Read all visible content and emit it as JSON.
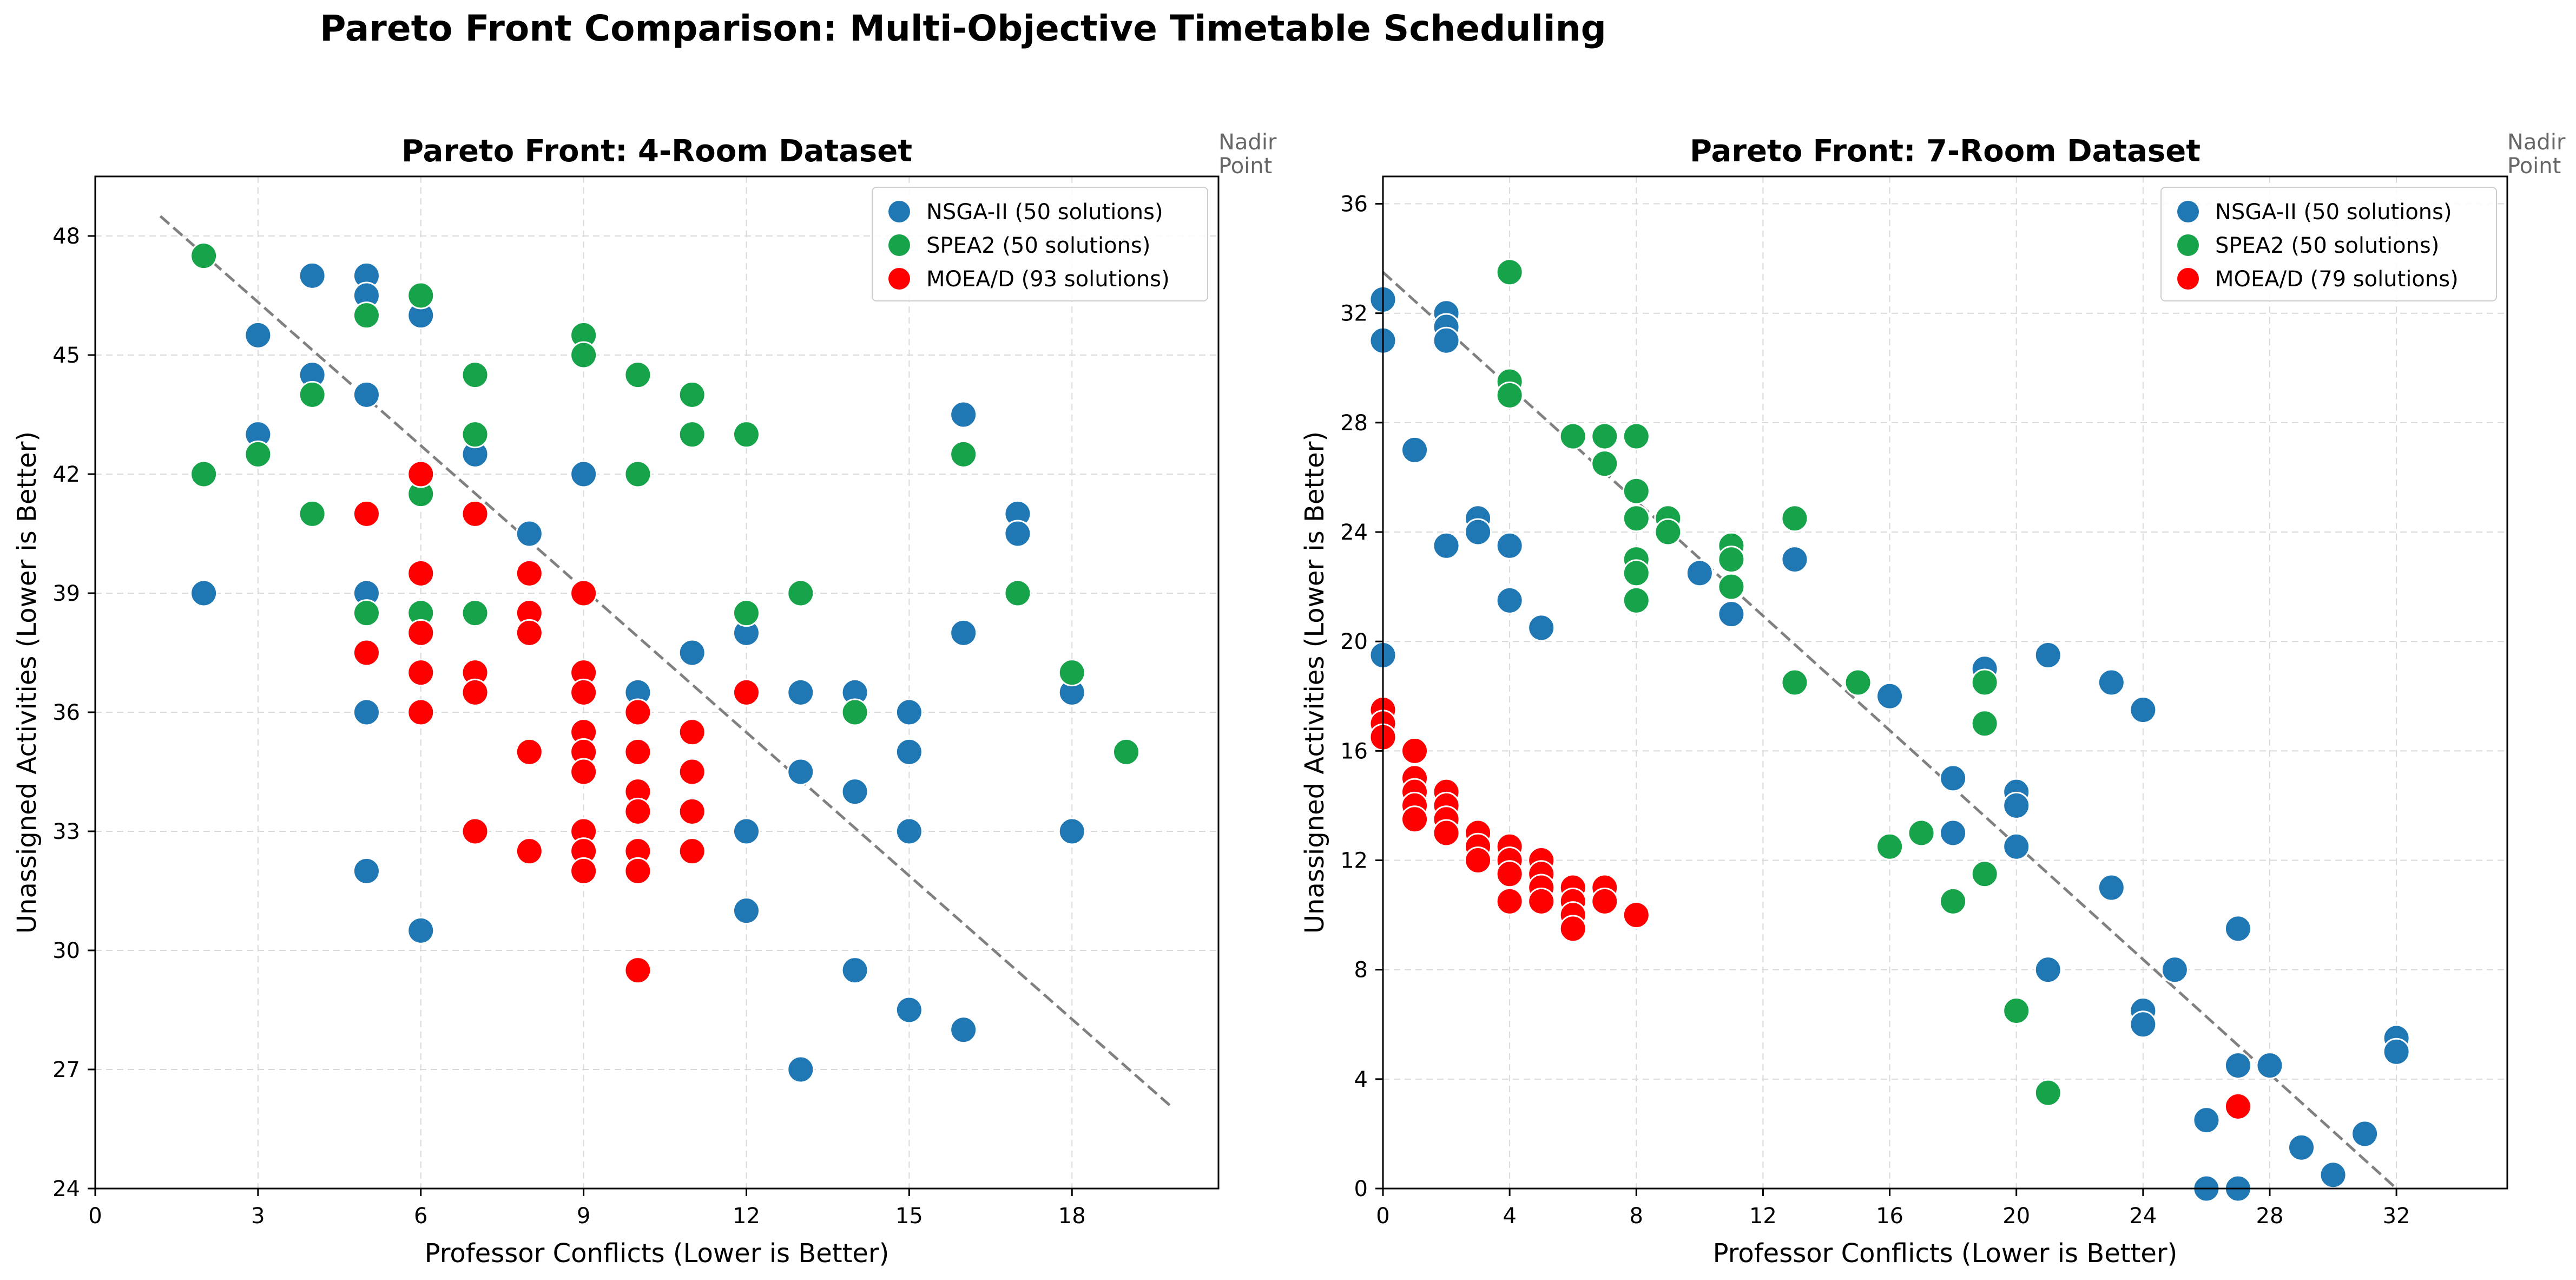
{
  "figure": {
    "suptitle": "Pareto Front Comparison: Multi-Objective Timetable Scheduling"
  },
  "colors": {
    "nsga": "#1f77b4",
    "spea2": "#17a34a",
    "moead": "#ff0000",
    "trend": "#808080",
    "grid": "#d9d9d9",
    "nadir_text": "#666666"
  },
  "chart_data": [
    {
      "type": "scatter",
      "title": "Pareto Front: 4-Room Dataset",
      "xlabel": "Professor Conflicts (Lower is Better)",
      "ylabel": "Unassigned Activities (Lower is Better)",
      "xlim": [
        0,
        20.7
      ],
      "ylim": [
        24,
        49.5
      ],
      "xticks": [
        0,
        3,
        6,
        9,
        12,
        15,
        18
      ],
      "yticks": [
        24,
        27,
        30,
        33,
        36,
        39,
        42,
        45,
        48
      ],
      "grid": true,
      "legend_position": "top-right",
      "nadir_label": "Nadir\nPoint",
      "trend_line": {
        "x": [
          1.2,
          19.8
        ],
        "y": [
          48.5,
          26.1
        ]
      },
      "series": [
        {
          "name": "NSGA-II (50 solutions)",
          "color_key": "nsga",
          "points": [
            [
              2,
              39
            ],
            [
              3,
              45.5
            ],
            [
              3,
              43
            ],
            [
              4,
              47
            ],
            [
              4,
              44.5
            ],
            [
              5,
              47
            ],
            [
              5,
              46.5
            ],
            [
              5,
              44
            ],
            [
              5,
              39
            ],
            [
              5,
              36
            ],
            [
              5,
              32
            ],
            [
              6,
              46
            ],
            [
              6,
              30.5
            ],
            [
              7,
              42.5
            ],
            [
              8,
              40.5
            ],
            [
              9,
              42
            ],
            [
              10,
              36.5
            ],
            [
              11,
              37.5
            ],
            [
              12,
              38
            ],
            [
              12,
              33
            ],
            [
              12,
              31
            ],
            [
              13,
              36.5
            ],
            [
              13,
              34.5
            ],
            [
              13,
              27
            ],
            [
              14,
              36.5
            ],
            [
              14,
              34
            ],
            [
              14,
              29.5
            ],
            [
              15,
              36
            ],
            [
              15,
              35
            ],
            [
              15,
              33
            ],
            [
              15,
              28.5
            ],
            [
              16,
              43.5
            ],
            [
              16,
              38
            ],
            [
              16,
              28
            ],
            [
              17,
              41
            ],
            [
              17,
              40.5
            ],
            [
              18,
              36.5
            ],
            [
              18,
              33
            ]
          ]
        },
        {
          "name": "SPEA2 (50 solutions)",
          "color_key": "spea2",
          "points": [
            [
              2,
              47.5
            ],
            [
              2,
              42
            ],
            [
              3,
              42.5
            ],
            [
              4,
              44
            ],
            [
              4,
              41
            ],
            [
              5,
              46
            ],
            [
              5,
              38.5
            ],
            [
              6,
              46.5
            ],
            [
              6,
              41.5
            ],
            [
              6,
              38.5
            ],
            [
              7,
              44.5
            ],
            [
              7,
              43
            ],
            [
              7,
              38.5
            ],
            [
              9,
              45.5
            ],
            [
              9,
              45
            ],
            [
              10,
              44.5
            ],
            [
              10,
              42
            ],
            [
              11,
              44
            ],
            [
              11,
              43
            ],
            [
              12,
              43
            ],
            [
              12,
              38.5
            ],
            [
              13,
              39
            ],
            [
              14,
              36
            ],
            [
              16,
              42.5
            ],
            [
              17,
              39
            ],
            [
              18,
              37
            ],
            [
              19,
              35
            ]
          ]
        },
        {
          "name": "MOEA/D (93 solutions)",
          "color_key": "moead",
          "points": [
            [
              5,
              41
            ],
            [
              5,
              37.5
            ],
            [
              6,
              42
            ],
            [
              6,
              39.5
            ],
            [
              6,
              38
            ],
            [
              6,
              37
            ],
            [
              6,
              36
            ],
            [
              7,
              41
            ],
            [
              7,
              37
            ],
            [
              7,
              36.5
            ],
            [
              7,
              33
            ],
            [
              8,
              39.5
            ],
            [
              8,
              38.5
            ],
            [
              8,
              38
            ],
            [
              8,
              35
            ],
            [
              8,
              32.5
            ],
            [
              9,
              39
            ],
            [
              9,
              37
            ],
            [
              9,
              36.5
            ],
            [
              9,
              35.5
            ],
            [
              9,
              35
            ],
            [
              9,
              34.5
            ],
            [
              9,
              33
            ],
            [
              9,
              32.5
            ],
            [
              9,
              32
            ],
            [
              10,
              36
            ],
            [
              10,
              35
            ],
            [
              10,
              34
            ],
            [
              10,
              33.5
            ],
            [
              10,
              32.5
            ],
            [
              10,
              32
            ],
            [
              10,
              29.5
            ],
            [
              11,
              35.5
            ],
            [
              11,
              34.5
            ],
            [
              11,
              33.5
            ],
            [
              11,
              32.5
            ],
            [
              12,
              36.5
            ]
          ]
        }
      ]
    },
    {
      "type": "scatter",
      "title": "Pareto Front: 7-Room Dataset",
      "xlabel": "Professor Conflicts (Lower is Better)",
      "ylabel": "Unassigned Activities (Lower is Better)",
      "xlim": [
        0,
        35.5
      ],
      "ylim": [
        0,
        37
      ],
      "xticks": [
        0,
        4,
        8,
        12,
        16,
        20,
        24,
        28,
        32
      ],
      "yticks": [
        0,
        4,
        8,
        12,
        16,
        20,
        24,
        28,
        32,
        36
      ],
      "grid": true,
      "legend_position": "top-right",
      "nadir_label": "Nadir\nPoint",
      "trend_line": {
        "x": [
          0,
          32
        ],
        "y": [
          33.5,
          0
        ]
      },
      "series": [
        {
          "name": "NSGA-II (50 solutions)",
          "color_key": "nsga",
          "points": [
            [
              0,
              32.5
            ],
            [
              0,
              31
            ],
            [
              0,
              19.5
            ],
            [
              1,
              27
            ],
            [
              2,
              32
            ],
            [
              2,
              31.5
            ],
            [
              2,
              31
            ],
            [
              2,
              23.5
            ],
            [
              3,
              24.5
            ],
            [
              3,
              24
            ],
            [
              4,
              23.5
            ],
            [
              4,
              21.5
            ],
            [
              5,
              20.5
            ],
            [
              10,
              22.5
            ],
            [
              11,
              21
            ],
            [
              13,
              23
            ],
            [
              16,
              18
            ],
            [
              18,
              15
            ],
            [
              18,
              13
            ],
            [
              19,
              19
            ],
            [
              20,
              14.5
            ],
            [
              20,
              14
            ],
            [
              20,
              12.5
            ],
            [
              21,
              19.5
            ],
            [
              21,
              8
            ],
            [
              23,
              18.5
            ],
            [
              23,
              11
            ],
            [
              24,
              17.5
            ],
            [
              24,
              6.5
            ],
            [
              24,
              6
            ],
            [
              25,
              8
            ],
            [
              26,
              2.5
            ],
            [
              26,
              0
            ],
            [
              27,
              9.5
            ],
            [
              27,
              4.5
            ],
            [
              27,
              0
            ],
            [
              28,
              4.5
            ],
            [
              29,
              1.5
            ],
            [
              30,
              0.5
            ],
            [
              31,
              2
            ],
            [
              32,
              5.5
            ],
            [
              32,
              5
            ]
          ]
        },
        {
          "name": "SPEA2 (50 solutions)",
          "color_key": "spea2",
          "points": [
            [
              4,
              33.5
            ],
            [
              4,
              29.5
            ],
            [
              4,
              29
            ],
            [
              6,
              27.5
            ],
            [
              7,
              27.5
            ],
            [
              7,
              26.5
            ],
            [
              8,
              27.5
            ],
            [
              8,
              25.5
            ],
            [
              8,
              24.5
            ],
            [
              8,
              23
            ],
            [
              8,
              22.5
            ],
            [
              8,
              21.5
            ],
            [
              9,
              24.5
            ],
            [
              9,
              24
            ],
            [
              11,
              23.5
            ],
            [
              11,
              23
            ],
            [
              11,
              22
            ],
            [
              13,
              24.5
            ],
            [
              13,
              18.5
            ],
            [
              15,
              18.5
            ],
            [
              16,
              12.5
            ],
            [
              17,
              13
            ],
            [
              18,
              10.5
            ],
            [
              19,
              18.5
            ],
            [
              19,
              17
            ],
            [
              19,
              11.5
            ],
            [
              20,
              6.5
            ],
            [
              21,
              3.5
            ]
          ]
        },
        {
          "name": "MOEA/D (79 solutions)",
          "color_key": "moead",
          "points": [
            [
              0,
              17.5
            ],
            [
              0,
              17
            ],
            [
              0,
              16.5
            ],
            [
              1,
              16
            ],
            [
              1,
              15
            ],
            [
              1,
              14.5
            ],
            [
              1,
              14
            ],
            [
              1,
              13.5
            ],
            [
              2,
              14.5
            ],
            [
              2,
              14
            ],
            [
              2,
              13.5
            ],
            [
              2,
              13
            ],
            [
              3,
              13
            ],
            [
              3,
              12.5
            ],
            [
              3,
              12
            ],
            [
              4,
              12.5
            ],
            [
              4,
              12
            ],
            [
              4,
              11.5
            ],
            [
              4,
              10.5
            ],
            [
              5,
              12
            ],
            [
              5,
              11.5
            ],
            [
              5,
              11
            ],
            [
              5,
              10.5
            ],
            [
              6,
              11
            ],
            [
              6,
              10.5
            ],
            [
              6,
              10
            ],
            [
              6,
              9.5
            ],
            [
              7,
              11
            ],
            [
              7,
              10.5
            ],
            [
              8,
              10
            ],
            [
              27,
              3
            ]
          ]
        }
      ]
    }
  ]
}
